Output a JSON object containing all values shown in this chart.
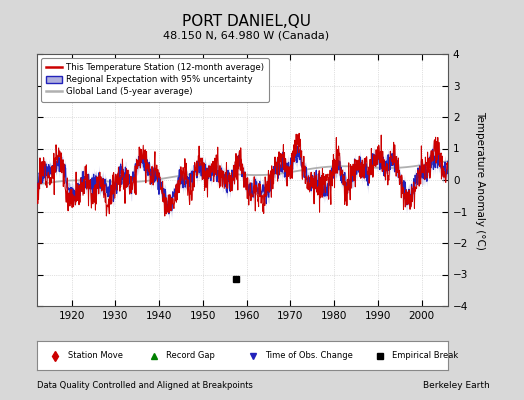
{
  "title": "PORT DANIEL,QU",
  "subtitle": "48.150 N, 64.980 W (Canada)",
  "ylabel": "Temperature Anomaly (°C)",
  "xlabel_note": "Data Quality Controlled and Aligned at Breakpoints",
  "credit": "Berkeley Earth",
  "year_start": 1912,
  "year_end": 2006,
  "ylim": [
    -4,
    4
  ],
  "yticks": [
    -4,
    -3,
    -2,
    -1,
    0,
    1,
    2,
    3,
    4
  ],
  "xticks": [
    1920,
    1930,
    1940,
    1950,
    1960,
    1970,
    1980,
    1990,
    2000
  ],
  "empirical_break_year": 1957.5,
  "empirical_break_value": -3.15,
  "bg_color": "#d8d8d8",
  "plot_bg_color": "#ffffff",
  "red_color": "#cc0000",
  "blue_color": "#2222bb",
  "blue_fill_color": "#b0b0dd",
  "gray_color": "#b0b0b0",
  "legend_border_color": "#888888",
  "seed_red": 12,
  "seed_blue": 34,
  "seed_gray": 56
}
